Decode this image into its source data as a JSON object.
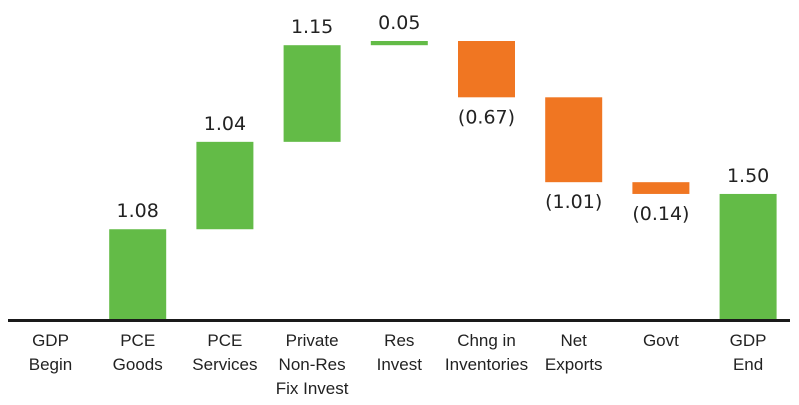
{
  "chart_data": {
    "type": "bar",
    "subtype": "waterfall",
    "categories": [
      [
        "GDP",
        "Begin"
      ],
      [
        "PCE",
        "Goods"
      ],
      [
        "PCE",
        "Services"
      ],
      [
        "Private",
        "Non-Res",
        "Fix Invest"
      ],
      [
        "Res",
        "Invest"
      ],
      [
        "Chng in",
        "Inventories"
      ],
      [
        "Net",
        "Exports"
      ],
      [
        "Govt"
      ],
      [
        "GDP",
        "End"
      ]
    ],
    "values": [
      0.0,
      1.08,
      1.04,
      1.15,
      0.05,
      -0.67,
      -1.01,
      -0.14,
      1.5
    ],
    "value_labels": [
      "",
      "1.08",
      "1.04",
      "1.15",
      "0.05",
      "(0.67)",
      "(1.01)",
      "(0.14)",
      "1.50"
    ],
    "totals": [
      true,
      false,
      false,
      false,
      false,
      false,
      false,
      false,
      true
    ],
    "ylim": [
      0,
      3.32
    ],
    "colors": {
      "positive": "#63bb47",
      "negative": "#f07622",
      "axis": "#1a1a1a"
    },
    "title": "",
    "xlabel": "",
    "ylabel": "",
    "grid": false,
    "legend": "none"
  }
}
